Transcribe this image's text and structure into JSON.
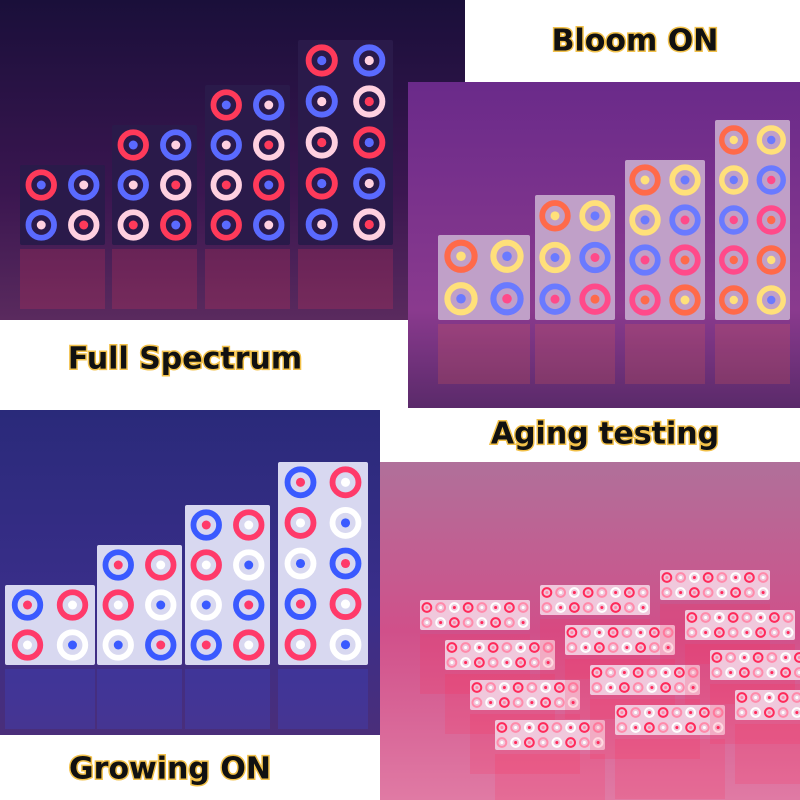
{
  "captions": {
    "top_right": "Bloom ON",
    "middle_left": "Full Spectrum",
    "middle_right": "Aging testing",
    "bottom_left": "Growing ON"
  }
}
